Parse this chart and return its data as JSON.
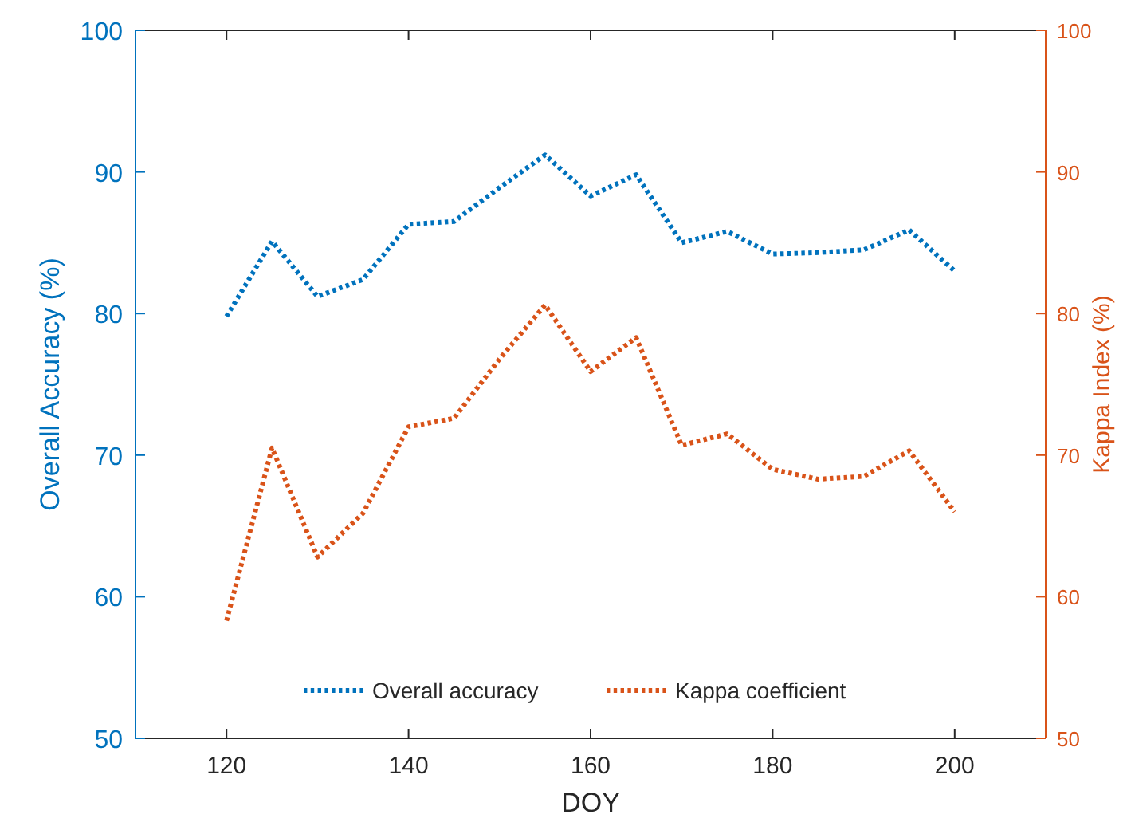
{
  "chart_data": {
    "type": "line",
    "xlabel": "DOY",
    "ylabel": "Overall Accuracy (%)",
    "y2label": "Kappa Index (%)",
    "x": [
      120,
      125,
      130,
      135,
      140,
      145,
      150,
      155,
      160,
      165,
      170,
      175,
      180,
      185,
      190,
      195,
      200
    ],
    "xlim": [
      110,
      210
    ],
    "xticks": [
      120,
      140,
      160,
      180,
      200
    ],
    "ylim": [
      50,
      100
    ],
    "yticks": [
      50,
      60,
      70,
      80,
      90,
      100
    ],
    "y2lim": [
      50,
      100
    ],
    "y2ticks": [
      50,
      60,
      70,
      80,
      90,
      100
    ],
    "line_style": "dotted",
    "legend": "bottom",
    "grid": false,
    "series": [
      {
        "name": "Overall accuracy",
        "color": "#0072bd",
        "values": [
          79.8,
          85.1,
          81.2,
          82.4,
          86.3,
          86.5,
          88.9,
          91.2,
          88.3,
          89.8,
          85.0,
          85.8,
          84.2,
          84.3,
          84.5,
          85.9,
          83.0
        ]
      },
      {
        "name": "Kappa coefficient",
        "color": "#d95319",
        "axis": "y2",
        "values": [
          58.3,
          70.5,
          62.8,
          65.9,
          72.0,
          72.6,
          76.8,
          80.6,
          75.9,
          78.3,
          70.7,
          71.5,
          69.0,
          68.3,
          68.5,
          70.3,
          66.0
        ]
      }
    ]
  }
}
